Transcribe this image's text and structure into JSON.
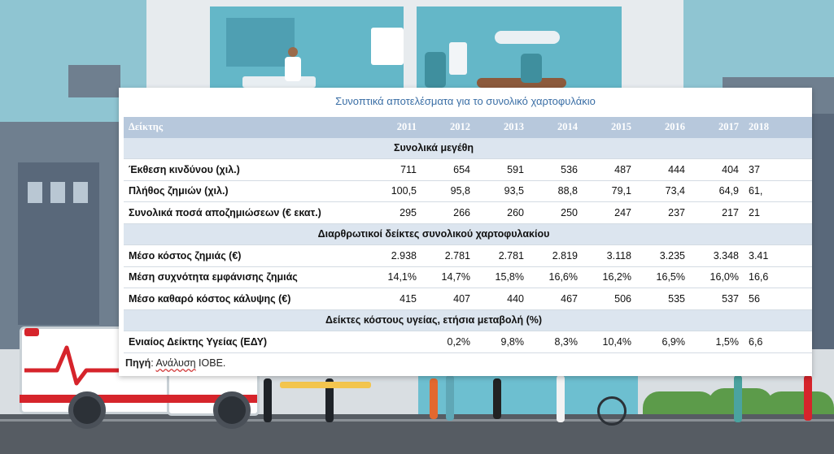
{
  "table": {
    "caption": "Συνοπτικά αποτελέσματα για το συνολικό χαρτοφυλάκιο",
    "header": {
      "label": "Δείκτης",
      "years": [
        "2011",
        "2012",
        "2013",
        "2014",
        "2015",
        "2016",
        "2017",
        "2018"
      ]
    },
    "sections": [
      {
        "title": "Συνολικά μεγέθη",
        "rows": [
          {
            "label": "Έκθεση κινδύνου (χιλ.)",
            "values": [
              "711",
              "654",
              "591",
              "536",
              "487",
              "444",
              "404",
              "37"
            ]
          },
          {
            "label": "Πλήθος ζημιών (χιλ.)",
            "values": [
              "100,5",
              "95,8",
              "93,5",
              "88,8",
              "79,1",
              "73,4",
              "64,9",
              "61,"
            ]
          },
          {
            "label": "Συνολικά ποσά αποζημιώσεων (€ εκατ.)",
            "values": [
              "295",
              "266",
              "260",
              "250",
              "247",
              "237",
              "217",
              "21"
            ]
          }
        ]
      },
      {
        "title": "Διαρθρωτικοί δείκτες συνολικού χαρτοφυλακίου",
        "rows": [
          {
            "label": "Μέσο κόστος ζημιάς (€)",
            "values": [
              "2.938",
              "2.781",
              "2.781",
              "2.819",
              "3.118",
              "3.235",
              "3.348",
              "3.41"
            ]
          },
          {
            "label": "Μέση συχνότητα εμφάνισης ζημιάς",
            "values": [
              "14,1%",
              "14,7%",
              "15,8%",
              "16,6%",
              "16,2%",
              "16,5%",
              "16,0%",
              "16,6"
            ]
          },
          {
            "label": "Μέσο καθαρό κόστος κάλυψης (€)",
            "values": [
              "415",
              "407",
              "440",
              "467",
              "506",
              "535",
              "537",
              "56"
            ]
          }
        ]
      },
      {
        "title": "Δείκτες κόστους υγείας, ετήσια μεταβολή (%)",
        "rows": [
          {
            "label": "Ενιαίος Δείκτης Υγείας (ΕΔΥ)",
            "values": [
              "",
              "0,2%",
              "9,8%",
              "8,3%",
              "10,4%",
              "6,9%",
              "1,5%",
              "6,6"
            ]
          }
        ]
      }
    ],
    "source": {
      "prefix": "Πηγή",
      "separator": ": ",
      "word": "Ανάλυση",
      "org": " ΙΟΒΕ."
    }
  },
  "colors": {
    "caption": "#3a6ea5",
    "header_bg": "#b7c8dc",
    "section_bg": "#dce5ef",
    "sky": "#8fc5d2",
    "ambulance_red": "#d6242b"
  },
  "icons": [
    "ambulance-icon",
    "heartbeat-icon"
  ]
}
